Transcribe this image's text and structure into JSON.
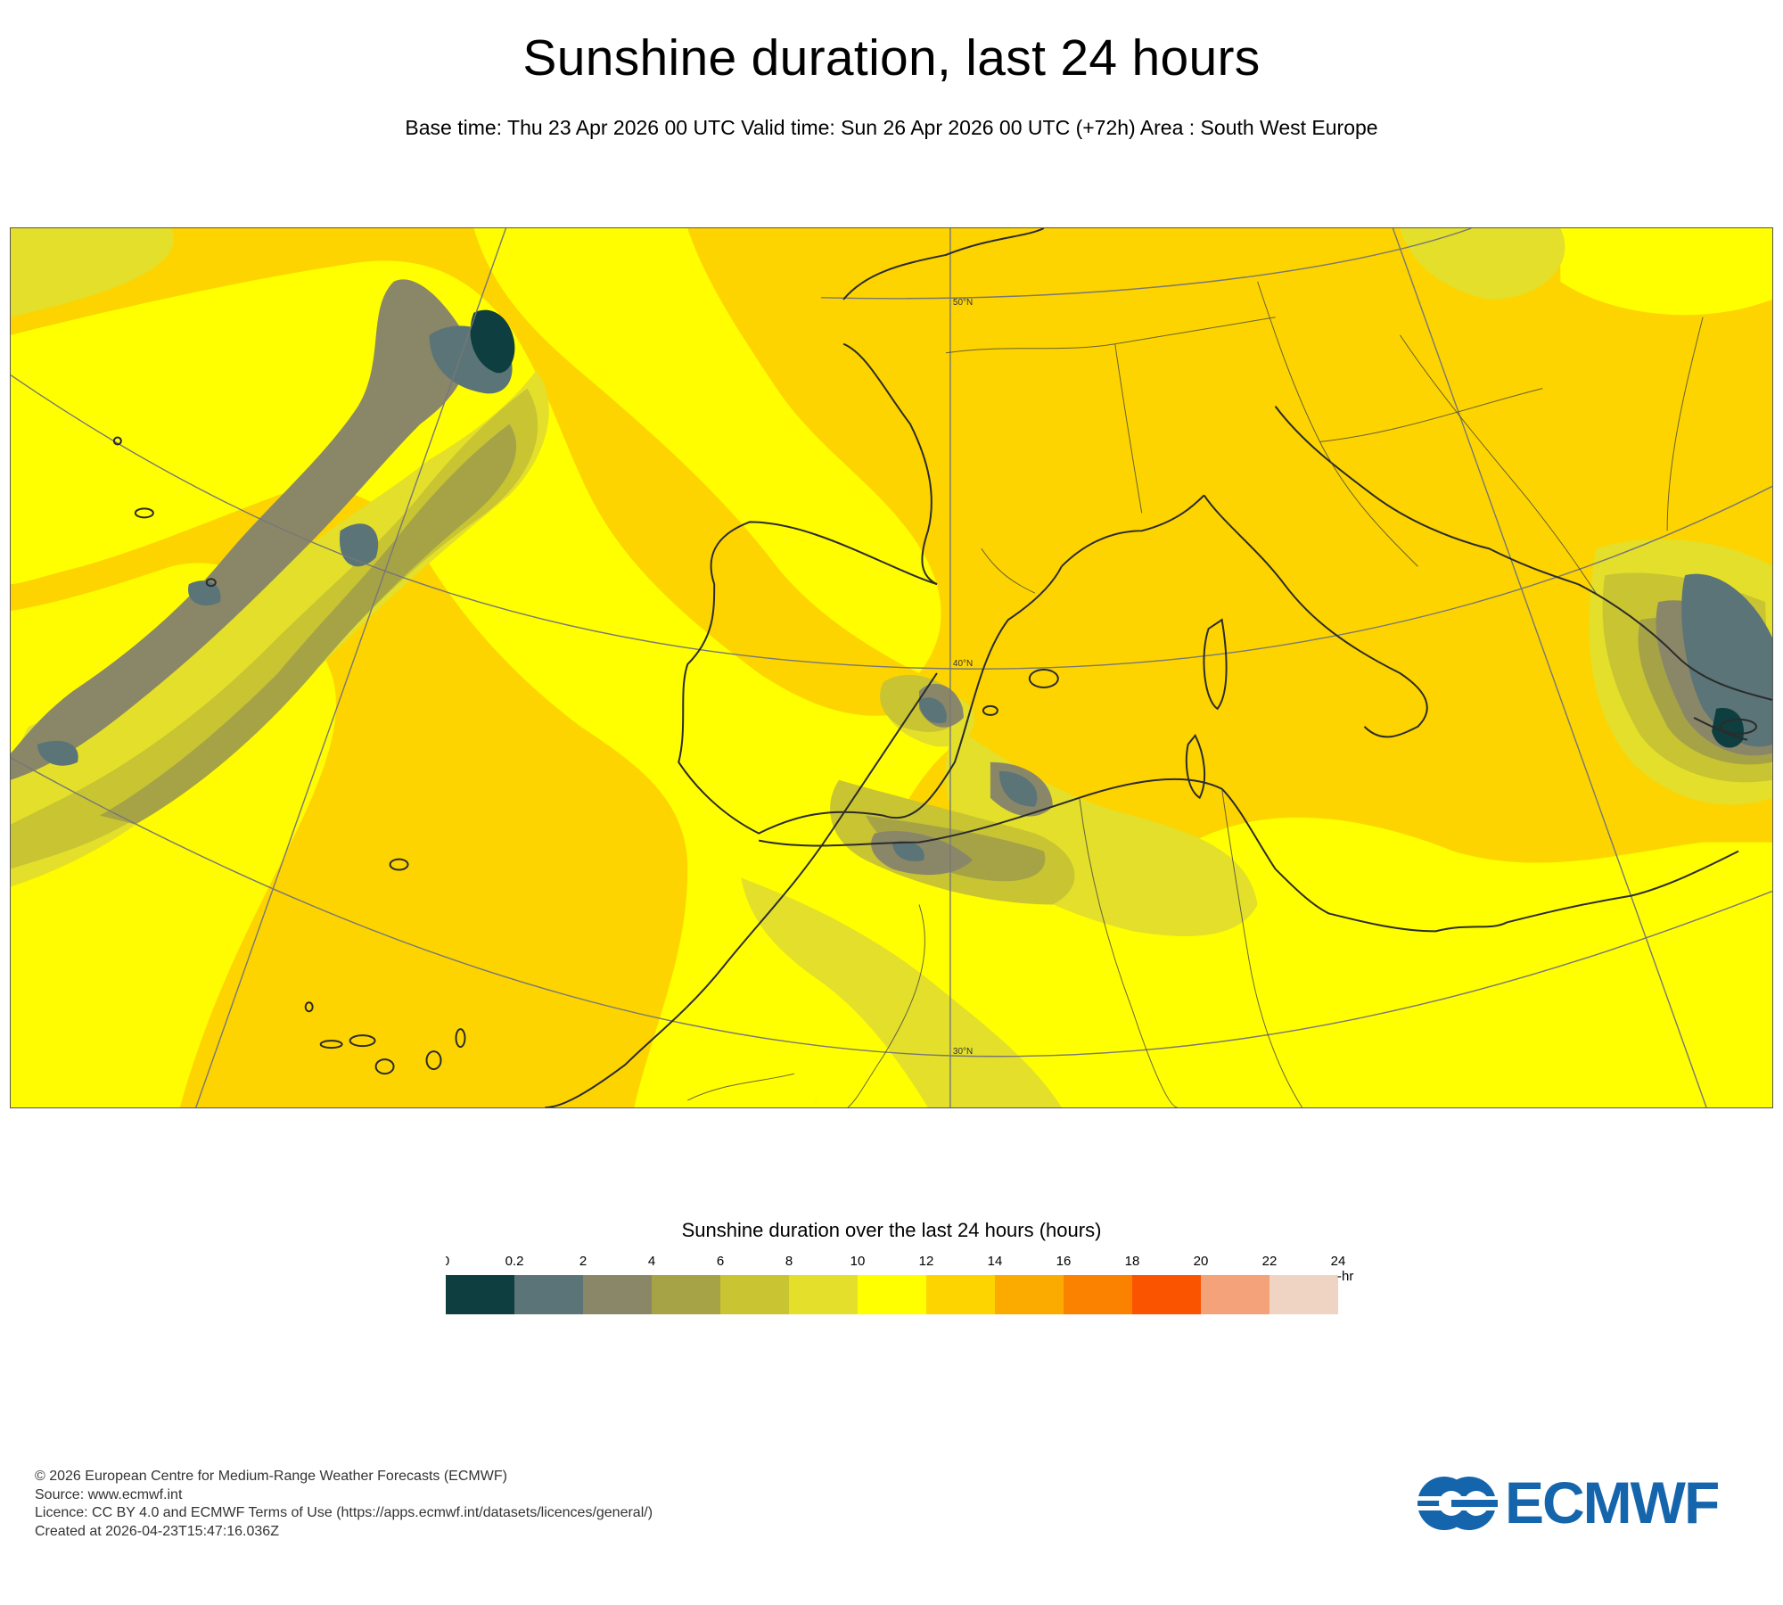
{
  "header": {
    "title": "Sunshine duration, last 24 hours",
    "subtitle": "Base time: Thu 23 Apr 2026 00 UTC Valid time: Sun 26 Apr 2026 00 UTC (+72h) Area : South West Europe"
  },
  "map": {
    "latitude_labels": [
      "50°N",
      "40°N",
      "30°N"
    ]
  },
  "legend": {
    "title": "Sunshine duration over the last 24 hours (hours)",
    "ticks": [
      "0",
      "0.2",
      "2",
      "4",
      "6",
      "8",
      "10",
      "12",
      "14",
      "16",
      "18",
      "20",
      "22",
      "24"
    ],
    "unit": "-hr",
    "colors": [
      "#0e3e3f",
      "#5a7478",
      "#8a8768",
      "#a6a347",
      "#c8c432",
      "#e3df2b",
      "#ffff00",
      "#fdd400",
      "#fbab00",
      "#fb8100",
      "#fb5400",
      "#f3a27a",
      "#efd3c3"
    ]
  },
  "footer": {
    "copyright": "© 2026 European Centre for Medium-Range Weather Forecasts (ECMWF)",
    "source": "Source: www.ecmwf.int",
    "licence": "Licence: CC BY 4.0 and ECMWF Terms of Use (https://apps.ecmwf.int/datasets/licences/general/)",
    "created": "Created at 2026-04-23T15:47:16.036Z"
  },
  "logo": {
    "text": "ECMWF",
    "color": "#1565ad"
  }
}
